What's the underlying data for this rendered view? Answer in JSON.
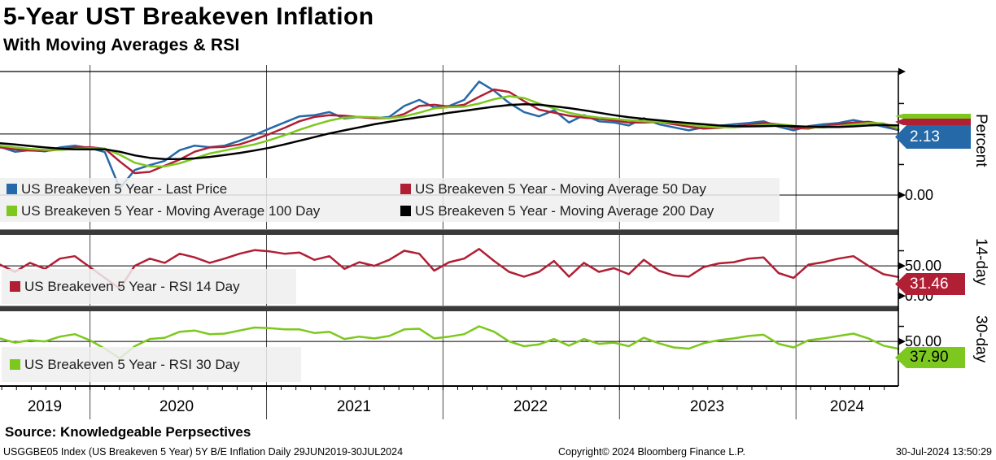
{
  "header": {
    "title": "5-Year UST Breakeven Inflation",
    "subtitle": "With Moving Averages & RSI"
  },
  "x_axis": {
    "year_labels": [
      "2019",
      "2020",
      "2021",
      "2022",
      "2023",
      "2024"
    ],
    "year_boundaries": [
      2020,
      2021,
      2022,
      2023,
      2024
    ],
    "range_text": "29JUN2019-30JUL2024"
  },
  "chart_data": [
    {
      "type": "line",
      "panel": "price",
      "axis_label": "Percent",
      "last_value": 2.13,
      "last_value_label": "2.13",
      "x_range": [
        2019.49,
        2024.58
      ],
      "ylim": [
        -1.12,
        4.05
      ],
      "gridlines_y": [
        0,
        2
      ],
      "yticks_labeled": [
        {
          "value": 0,
          "label": "0.00"
        }
      ],
      "yticks_minor": [
        1,
        3
      ],
      "legend_position": "bottom-left",
      "series": [
        {
          "name": "US Breakeven 5 Year - Last Price",
          "color": "#2569a8",
          "values": [
            1.58,
            1.42,
            1.47,
            1.43,
            1.56,
            1.62,
            1.54,
            1.41,
            0.22,
            0.82,
            0.98,
            1.12,
            1.47,
            1.62,
            1.57,
            1.62,
            1.78,
            1.97,
            2.18,
            2.38,
            2.58,
            2.62,
            2.72,
            2.51,
            2.56,
            2.52,
            2.56,
            2.92,
            3.12,
            2.87,
            2.92,
            3.12,
            3.72,
            3.42,
            3.02,
            2.72,
            2.58,
            2.78,
            2.38,
            2.62,
            2.42,
            2.38,
            2.28,
            2.52,
            2.32,
            2.22,
            2.12,
            2.22,
            2.27,
            2.32,
            2.36,
            2.42,
            2.24,
            2.12,
            2.26,
            2.32,
            2.36,
            2.46,
            2.36,
            2.24,
            2.13
          ]
        },
        {
          "name": "US Breakeven 5 Year - Moving Average 50 Day",
          "color": "#b11f35",
          "values": [
            1.56,
            1.5,
            1.46,
            1.45,
            1.49,
            1.56,
            1.57,
            1.52,
            1.1,
            0.72,
            0.76,
            0.96,
            1.16,
            1.42,
            1.56,
            1.58,
            1.66,
            1.82,
            2.0,
            2.2,
            2.42,
            2.56,
            2.62,
            2.6,
            2.55,
            2.52,
            2.52,
            2.66,
            2.92,
            2.96,
            2.9,
            2.96,
            3.22,
            3.46,
            3.38,
            3.08,
            2.8,
            2.7,
            2.6,
            2.54,
            2.5,
            2.44,
            2.38,
            2.38,
            2.4,
            2.32,
            2.24,
            2.18,
            2.2,
            2.25,
            2.3,
            2.36,
            2.32,
            2.2,
            2.18,
            2.26,
            2.32,
            2.38,
            2.4,
            2.32,
            2.16
          ]
        },
        {
          "name": "US Breakeven 5 Year - Moving Average 100 Day",
          "color": "#7cc81e",
          "values": [
            1.62,
            1.56,
            1.51,
            1.48,
            1.48,
            1.51,
            1.53,
            1.52,
            1.32,
            1.06,
            0.94,
            0.94,
            1.04,
            1.2,
            1.36,
            1.46,
            1.56,
            1.66,
            1.8,
            1.96,
            2.14,
            2.3,
            2.44,
            2.54,
            2.56,
            2.55,
            2.52,
            2.58,
            2.7,
            2.84,
            2.88,
            2.9,
            3.0,
            3.14,
            3.24,
            3.18,
            3.0,
            2.84,
            2.7,
            2.6,
            2.54,
            2.5,
            2.45,
            2.42,
            2.4,
            2.37,
            2.31,
            2.25,
            2.22,
            2.22,
            2.26,
            2.3,
            2.32,
            2.27,
            2.22,
            2.22,
            2.26,
            2.31,
            2.36,
            2.35,
            2.18
          ]
        },
        {
          "name": "US Breakeven 5 Year - Moving Average 200 Day",
          "color": "#000000",
          "values": [
            1.7,
            1.66,
            1.61,
            1.56,
            1.52,
            1.5,
            1.5,
            1.5,
            1.42,
            1.3,
            1.22,
            1.18,
            1.18,
            1.2,
            1.25,
            1.31,
            1.38,
            1.46,
            1.55,
            1.66,
            1.78,
            1.9,
            2.02,
            2.12,
            2.22,
            2.32,
            2.4,
            2.48,
            2.55,
            2.62,
            2.7,
            2.76,
            2.83,
            2.9,
            2.95,
            2.98,
            2.96,
            2.91,
            2.85,
            2.78,
            2.7,
            2.62,
            2.55,
            2.5,
            2.45,
            2.4,
            2.36,
            2.32,
            2.28,
            2.26,
            2.25,
            2.26,
            2.27,
            2.26,
            2.24,
            2.23,
            2.23,
            2.25,
            2.28,
            2.3,
            2.28
          ]
        }
      ]
    },
    {
      "type": "line",
      "panel": "rsi14",
      "axis_label": "14-day",
      "last_value": 31.46,
      "last_value_label": "31.46",
      "x_range": [
        2019.49,
        2024.58
      ],
      "ylim": [
        -16,
        100
      ],
      "gridlines_y": [
        50
      ],
      "yticks_labeled": [
        {
          "value": 50,
          "label": "50.00"
        },
        {
          "value": 0,
          "label": "0.00"
        }
      ],
      "yticks_minor": [
        75
      ],
      "legend_position": "bottom-left",
      "series": [
        {
          "name": "US Breakeven 5 Year - RSI 14 Day",
          "color": "#b11f35",
          "values": [
            52,
            40,
            55,
            45,
            62,
            66,
            48,
            30,
            12,
            50,
            62,
            55,
            70,
            64,
            55,
            62,
            70,
            76,
            74,
            70,
            72,
            60,
            66,
            45,
            56,
            50,
            60,
            75,
            70,
            42,
            56,
            62,
            78,
            58,
            40,
            32,
            40,
            58,
            32,
            55,
            40,
            46,
            36,
            60,
            42,
            34,
            32,
            48,
            54,
            56,
            62,
            64,
            38,
            30,
            52,
            56,
            62,
            66,
            50,
            36,
            31.46
          ]
        }
      ]
    },
    {
      "type": "line",
      "panel": "rsi30",
      "axis_label": "30-day",
      "last_value": 37.9,
      "last_value_label": "37.90",
      "x_range": [
        2019.49,
        2024.58
      ],
      "ylim": [
        -24,
        100
      ],
      "gridlines_y": [
        50
      ],
      "yticks_labeled": [
        {
          "value": 50,
          "label": "50.00"
        }
      ],
      "yticks_minor": [
        75
      ],
      "legend_position": "bottom-left",
      "series": [
        {
          "name": "US Breakeven 5 Year - RSI 30 Day",
          "color": "#7cc81e",
          "values": [
            55,
            48,
            52,
            50,
            58,
            62,
            52,
            38,
            22,
            42,
            54,
            56,
            66,
            68,
            62,
            63,
            68,
            73,
            72,
            70,
            70,
            64,
            66,
            54,
            58,
            55,
            59,
            70,
            71,
            55,
            58,
            62,
            75,
            66,
            50,
            42,
            45,
            54,
            43,
            54,
            46,
            48,
            42,
            56,
            47,
            40,
            38,
            47,
            52,
            55,
            59,
            61,
            46,
            40,
            52,
            55,
            59,
            63,
            55,
            43,
            37.9
          ]
        }
      ]
    }
  ],
  "footer": {
    "source": "Source: Knowledgeable Perpsectives",
    "ticker_line": "USGGBE05 Index (US Breakeven 5 Year) 5Y B/E Inflation  Daily 29JUN2019-30JUL2024",
    "copyright": "Copyright© 2024 Bloomberg Finance L.P.",
    "datetime": "30-Jul-2024 13:50:29"
  }
}
